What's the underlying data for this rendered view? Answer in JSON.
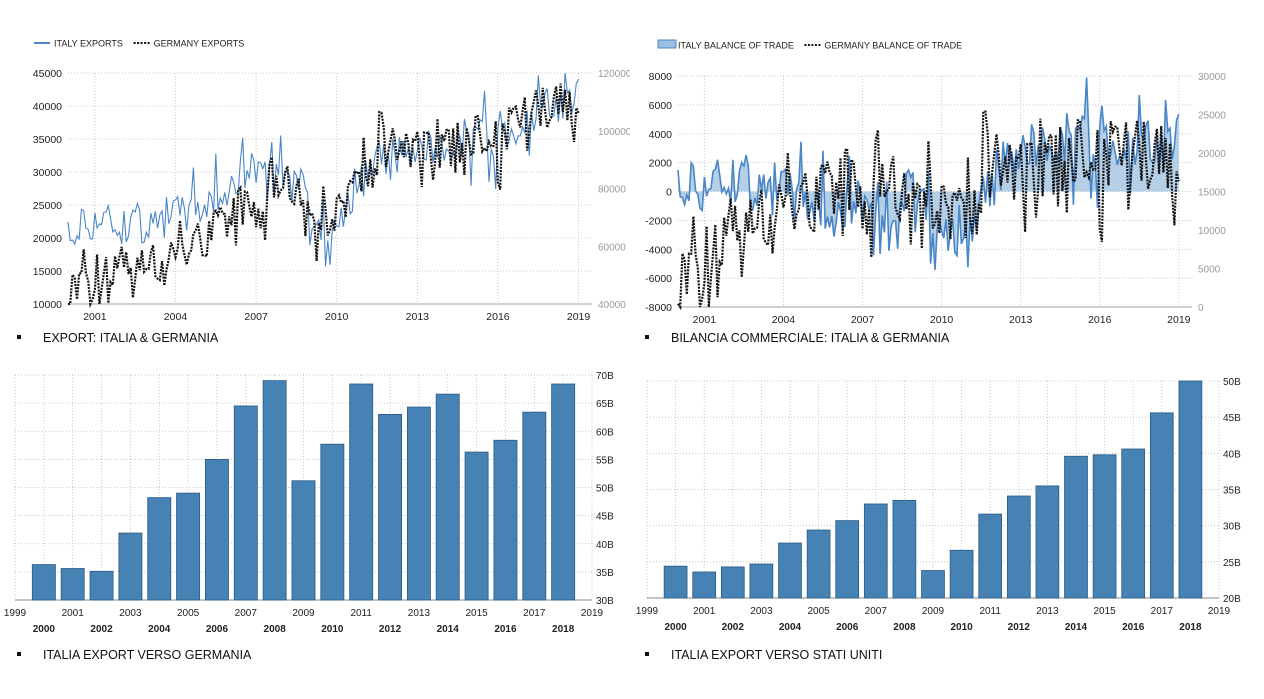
{
  "colors": {
    "italy_line": "#4a86c8",
    "germany_line": "#111111",
    "bar_fill": "#4682b4",
    "bar_stroke": "#2a5a85",
    "area_fill": "#9cbfdf",
    "grid": "#bbbbbb"
  },
  "captions": {
    "c1": "EXPORT:  ITALIA & GERMANIA",
    "c2": "BILANCIA COMMERCIALE:  ITALIA & GERMANIA",
    "c3": "ITALIA EXPORT VERSO GERMANIA",
    "c4": "ITALIA EXPORT VERSO STATI UNITI"
  },
  "chart_data": [
    {
      "type": "line",
      "legend": [
        "ITALY EXPORTS",
        "GERMANY EXPORTS"
      ],
      "legend_position": "top-left",
      "grid": true,
      "x_range": [
        2000,
        2019.5
      ],
      "x_ticks": [
        "2001",
        "2004",
        "2007",
        "2010",
        "2013",
        "2016",
        "2019"
      ],
      "y_left": {
        "min": 10000,
        "max": 45000,
        "ticks": [
          "45000",
          "40000",
          "35000",
          "30000",
          "25000",
          "20000",
          "15000",
          "10000"
        ]
      },
      "y_right": {
        "min": 40000,
        "max": 120000,
        "ticks": [
          "120000",
          "100000",
          "80000",
          "60000",
          "40000"
        ]
      },
      "series": [
        {
          "name": "ITALY EXPORTS",
          "axis": "left",
          "style": "solid",
          "x": [
            2000.0,
            2001.0,
            2002.0,
            2003.0,
            2004.0,
            2005.0,
            2006.0,
            2007.0,
            2008.0,
            2008.5,
            2009.2,
            2010.0,
            2011.0,
            2012.0,
            2013.0,
            2014.0,
            2015.0,
            2016.0,
            2017.0,
            2018.0,
            2019.0
          ],
          "y": [
            20000,
            23000,
            22000,
            22500,
            23500,
            25000,
            28000,
            31000,
            33000,
            30000,
            21000,
            23000,
            30000,
            32000,
            33000,
            34000,
            36000,
            35000,
            38000,
            40000,
            41000
          ]
        },
        {
          "name": "GERMANY EXPORTS",
          "axis": "right",
          "style": "dotted",
          "x": [
            2000.0,
            2001.0,
            2002.0,
            2003.0,
            2004.0,
            2005.0,
            2006.0,
            2007.0,
            2008.0,
            2008.5,
            2009.2,
            2010.0,
            2011.0,
            2012.0,
            2013.0,
            2014.0,
            2015.0,
            2016.0,
            2017.0,
            2018.0,
            2019.0
          ],
          "y": [
            45000,
            50000,
            53000,
            55000,
            58000,
            63000,
            70000,
            78000,
            83000,
            80000,
            62000,
            72000,
            87000,
            90000,
            92000,
            93000,
            98000,
            100000,
            105000,
            108000,
            108000
          ]
        }
      ]
    },
    {
      "type": "area",
      "legend": [
        "ITALY BALANCE OF TRADE",
        "GERMANY BALANCE OF TRADE"
      ],
      "legend_position": "top-left",
      "grid": true,
      "x_range": [
        2000,
        2019.5
      ],
      "x_ticks": [
        "2001",
        "2004",
        "2007",
        "2010",
        "2013",
        "2016",
        "2019"
      ],
      "y_left": {
        "min": -8000,
        "max": 8000,
        "ticks": [
          "8000",
          "6000",
          "4000",
          "2000",
          "0",
          "-2000",
          "-4000",
          "-6000",
          "-8000"
        ]
      },
      "y_right": {
        "min": 0,
        "max": 30000,
        "ticks": [
          "30000",
          "25000",
          "20000",
          "15000",
          "10000",
          "5000",
          "0"
        ]
      },
      "series": [
        {
          "name": "ITALY BALANCE OF TRADE",
          "axis": "left",
          "style": "area",
          "x": [
            2000.0,
            2001.0,
            2002.0,
            2003.0,
            2004.0,
            2005.0,
            2006.0,
            2007.0,
            2008.0,
            2009.0,
            2010.0,
            2011.0,
            2011.5,
            2012.0,
            2012.5,
            2013.0,
            2014.0,
            2015.0,
            2016.0,
            2017.0,
            2018.0,
            2019.0
          ],
          "y": [
            0,
            500,
            1000,
            500,
            0,
            -500,
            -1500,
            -500,
            -1000,
            0,
            -2000,
            -3000,
            -1500,
            1000,
            2000,
            2500,
            3500,
            4000,
            3500,
            3500,
            3000,
            3500
          ]
        },
        {
          "name": "GERMANY BALANCE OF TRADE",
          "axis": "right",
          "style": "dotted",
          "x": [
            2000.0,
            2001.0,
            2002.0,
            2003.0,
            2004.0,
            2005.0,
            2006.0,
            2007.0,
            2008.0,
            2009.0,
            2010.0,
            2011.0,
            2012.0,
            2013.0,
            2014.0,
            2015.0,
            2016.0,
            2017.0,
            2018.0,
            2019.0
          ],
          "y": [
            4000,
            6000,
            10000,
            12000,
            14000,
            14000,
            16000,
            17000,
            17000,
            12000,
            13000,
            13000,
            16000,
            16500,
            18000,
            20000,
            21000,
            20000,
            19000,
            17500
          ]
        }
      ]
    },
    {
      "type": "bar",
      "categories": [
        "2000",
        "2001",
        "2002",
        "2003",
        "2004",
        "2005",
        "2006",
        "2007",
        "2008",
        "2009",
        "2010",
        "2011",
        "2012",
        "2013",
        "2014",
        "2015",
        "2016",
        "2017",
        "2018"
      ],
      "values": [
        36.3,
        35.6,
        35.1,
        41.9,
        48.2,
        49.0,
        55.0,
        64.5,
        69.0,
        51.2,
        57.7,
        68.4,
        63.0,
        64.3,
        66.6,
        56.3,
        58.4,
        63.4,
        68.4
      ],
      "unit": "B",
      "ylim": [
        30,
        70
      ],
      "y_ticks": [
        "70B",
        "65B",
        "60B",
        "55B",
        "50B",
        "45B",
        "40B",
        "35B",
        "30B"
      ],
      "x_ticks_top": [
        "1999",
        "2001",
        "2003",
        "2005",
        "2007",
        "2009",
        "2011",
        "2013",
        "2015",
        "2017",
        "2019"
      ],
      "x_ticks_bottom": [
        "2000",
        "2002",
        "2004",
        "2006",
        "2008",
        "2010",
        "2012",
        "2014",
        "2016",
        "2018"
      ],
      "grid": true
    },
    {
      "type": "bar",
      "categories": [
        "2000",
        "2001",
        "2002",
        "2003",
        "2004",
        "2005",
        "2006",
        "2007",
        "2008",
        "2009",
        "2010",
        "2011",
        "2012",
        "2013",
        "2014",
        "2015",
        "2016",
        "2017",
        "2018"
      ],
      "values": [
        24.4,
        23.6,
        24.3,
        24.7,
        27.6,
        29.4,
        30.7,
        33.0,
        33.5,
        23.8,
        26.6,
        31.6,
        34.1,
        35.5,
        39.6,
        39.8,
        40.6,
        45.6,
        50.0
      ],
      "unit": "B",
      "ylim": [
        20,
        50
      ],
      "y_ticks": [
        "50B",
        "45B",
        "40B",
        "35B",
        "30B",
        "25B",
        "20B"
      ],
      "x_ticks_top": [
        "1999",
        "2001",
        "2003",
        "2005",
        "2007",
        "2009",
        "2011",
        "2013",
        "2015",
        "2017",
        "2019"
      ],
      "x_ticks_bottom": [
        "2000",
        "2002",
        "2004",
        "2006",
        "2008",
        "2010",
        "2012",
        "2014",
        "2016",
        "2018"
      ],
      "grid": true
    }
  ]
}
